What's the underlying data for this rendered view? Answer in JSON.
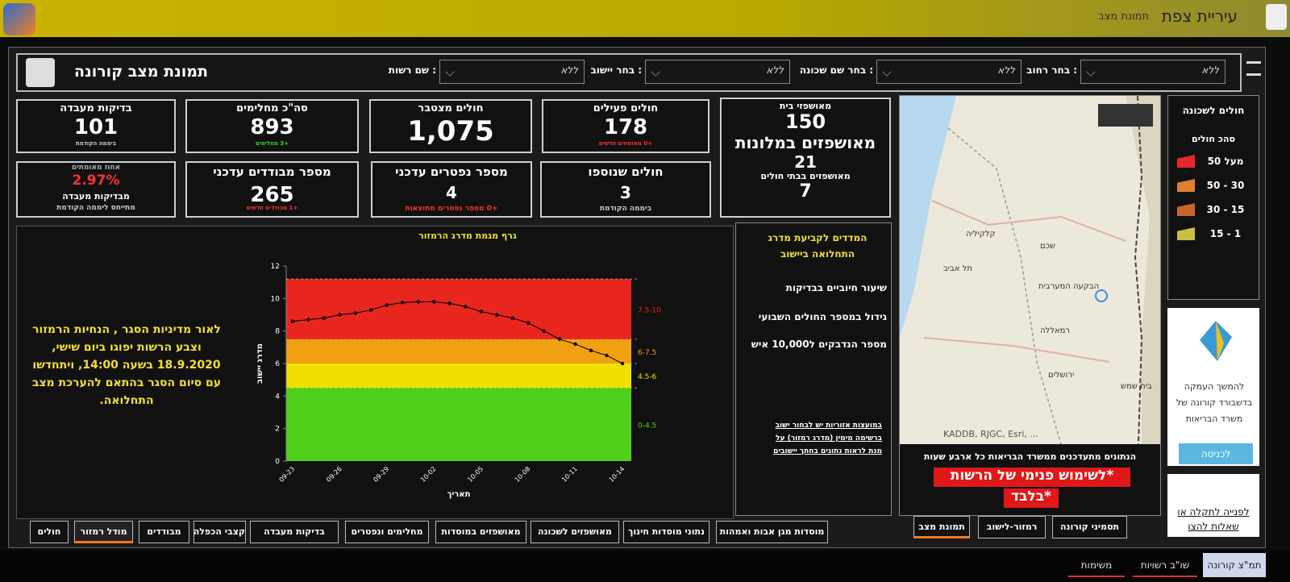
{
  "top_bar": {
    "title": "עיריית צפת",
    "subtitle": "תמונת מצב"
  },
  "header": {
    "title": "תמונת מצב קורונה",
    "filters": [
      {
        "label": ": שם רשות",
        "value": "ללא"
      },
      {
        "label": ": בחר יישוב",
        "value": "ללא"
      },
      {
        "label": ": בחר שם שכונה",
        "value": "ללא"
      },
      {
        "label": ": בחר רחוב",
        "value": "ללא"
      }
    ]
  },
  "kpis": [
    {
      "title": "בדיקות מעבדה",
      "value": "101",
      "note": "ביממה הקודמת"
    },
    {
      "title": "סה\"כ מחלימים",
      "value": "893",
      "note": "+3 מחלימים"
    },
    {
      "title": "חולים מצטבר",
      "value": "1,075"
    },
    {
      "title": "חולים פעילים",
      "value": "178",
      "note": "+0 מאומתים חדשים"
    },
    {
      "title": "אחוז מאומתים",
      "value": "2.97%",
      "subtitle": "מבדיקות מעבדה",
      "note": "מתייחס ליממה הקודמת"
    },
    {
      "title": "מספר מבודדים עדכני",
      "value": "265",
      "note": "+1 מבודדים חדשים"
    },
    {
      "title": "מספר נפטרים עדכני",
      "value": "4",
      "note": "+0 מספר נפטרים מתוצאות"
    },
    {
      "title": "חולים שנוספו",
      "value": "3",
      "note": "ביממה הקודמת"
    }
  ],
  "hospitalized": [
    {
      "title": "מאושפזי בית",
      "value": "150"
    },
    {
      "title": "מאושפזים במלונות",
      "value": "21"
    },
    {
      "title": "מאושפזים בבתי חולים",
      "value": "7"
    }
  ],
  "notice": "לאור מדיניות הסגר , הנחיות הרמזור וצבע הרשות יפוגו ביום שישי, 18.9.2020 בשעה 14:00, ויתחדשו עם סיום הסגר בהתאם להערכת מצב התחלואה.",
  "chart": {
    "type": "line",
    "title": "גרף מגמת מדרג הרמזור",
    "x_label": "תאריך",
    "y_label": "מדרג יישוב",
    "categories": [
      "09-23",
      null,
      null,
      "09-26",
      null,
      null,
      "09-29",
      null,
      null,
      "10-02",
      null,
      null,
      "10-05",
      null,
      null,
      "10-08",
      null,
      null,
      "10-11",
      null,
      null,
      "10-14"
    ],
    "values": [
      8.6,
      8.7,
      8.8,
      9.0,
      9.1,
      9.3,
      9.6,
      9.75,
      9.8,
      9.8,
      9.7,
      9.5,
      9.2,
      9.0,
      8.8,
      8.5,
      8.0,
      7.5,
      7.2,
      6.8,
      6.5,
      6.0
    ],
    "color": "#000000",
    "ylim": [
      0,
      12
    ],
    "yticks": [
      0,
      2,
      4,
      6,
      8,
      10,
      12
    ],
    "bands": [
      {
        "from": 0,
        "to": 4.5,
        "label": "0-4.5",
        "color": "#4fd11c"
      },
      {
        "from": 4.5,
        "to": 6,
        "label": "4.5-6",
        "color": "#f0e000"
      },
      {
        "from": 6,
        "to": 7.5,
        "label": "6-7.5",
        "color": "#f0a010"
      },
      {
        "from": 7.5,
        "to": 11.2,
        "label": "7.5-10",
        "color": "#e8261e"
      }
    ]
  },
  "indicators": {
    "title": "המדדים לקביעת מדרג התחלואה ביישוב",
    "items": [
      "שיעור חיוביים בבדיקות",
      "גידול במספר החולים השבועי",
      "מספר הנדבקים ל10,000 איש"
    ],
    "link": "במועצות אזוריות יש לבחור ישוב ברשימה מימין (מדרג רמזור) על מנת לראות נתונים בחתך יישובים"
  },
  "map": {
    "places": [
      "קלקיליה",
      "תל אביב",
      "שכם",
      "הבקעה המערבית",
      "רמאללה",
      "ירושלים",
      "בית שמש"
    ],
    "attribution": "KADDB, RJGC, Esri, ...",
    "update_note": "הנתונים מתעדכנים ממשרד הבריאות כל ארבע שעות",
    "warning_1": "*לשימוש פנימי של הרשות",
    "warning_2": "*בלבד"
  },
  "legend": {
    "title": "חולים לשכונה",
    "subtitle": "סהכ חולים",
    "items": [
      {
        "label": "מעל 50",
        "color": "#e8272a"
      },
      {
        "label": "30 - 50",
        "color": "#e08030"
      },
      {
        "label": "15 - 30",
        "color": "#c8642a"
      },
      {
        "label": "1 - 15",
        "color": "#c8c040"
      }
    ]
  },
  "promo": {
    "text": "להמשך העמקה בדשבורד קורונה של משרד הבריאות",
    "button": "לכניסה",
    "support": "לפנייה לתקלה או שאלות להצו"
  },
  "tabs": [
    "חולים",
    "מודל רמזור",
    "מבודדים",
    "קצבי הכפלה",
    "בדיקות מעבדה",
    "מחלימים ונפטרים",
    "מאושפזים במוסדות",
    "מאושפזים לשכונה",
    "נתוני מוסדות חינוך",
    "מוסדות מגן אבות ואמהות"
  ],
  "map_tabs": [
    "תמונת מצב",
    "רמזור-לישוב",
    "תסמיני קורונה"
  ],
  "bottom_tabs": [
    "משימות",
    "שו\"ב רשויות",
    "תמ\"צ קורונה"
  ]
}
